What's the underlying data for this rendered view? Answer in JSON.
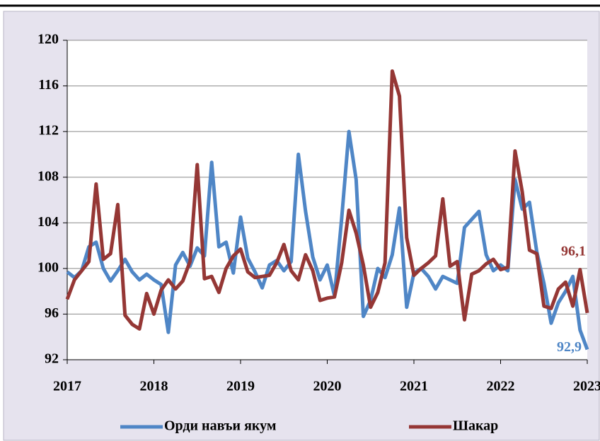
{
  "chart_data": {
    "type": "line",
    "categories": [
      "2017",
      null,
      null,
      null,
      null,
      null,
      null,
      null,
      null,
      null,
      null,
      null,
      "2018",
      null,
      null,
      null,
      null,
      null,
      null,
      null,
      null,
      null,
      null,
      null,
      "2019",
      null,
      null,
      null,
      null,
      null,
      null,
      null,
      null,
      null,
      null,
      null,
      "2020",
      null,
      null,
      null,
      null,
      null,
      null,
      null,
      null,
      null,
      null,
      null,
      "2021",
      null,
      null,
      null,
      null,
      null,
      null,
      null,
      null,
      null,
      null,
      null,
      "2022",
      null,
      null,
      null,
      null,
      null,
      null,
      null,
      null,
      null,
      null,
      null,
      "2023"
    ],
    "series": [
      {
        "name": "Орди навъи якум",
        "color": "#4f86c6",
        "values": [
          99.7,
          99.2,
          99.8,
          101.9,
          102.3,
          100.0,
          98.9,
          99.8,
          100.8,
          99.7,
          99.0,
          99.5,
          99.0,
          98.6,
          94.4,
          100.3,
          101.4,
          100.2,
          101.8,
          101.1,
          109.3,
          101.9,
          102.3,
          99.6,
          104.5,
          100.9,
          99.7,
          98.3,
          100.3,
          100.7,
          99.8,
          100.6,
          110.0,
          105.0,
          101.0,
          99.0,
          100.3,
          97.6,
          104.4,
          112.0,
          107.8,
          95.8,
          97.2,
          100.0,
          99.2,
          101.2,
          105.3,
          96.6,
          99.6,
          100.0,
          99.3,
          98.2,
          99.3,
          99.0,
          98.7,
          103.6,
          104.3,
          105.0,
          101.2,
          99.8,
          100.3,
          99.8,
          107.8,
          105.2,
          105.8,
          101.5,
          98.7,
          95.2,
          97.0,
          98.0,
          99.3,
          94.6,
          92.9
        ],
        "value_labels": [
          null,
          null,
          null,
          null,
          null,
          null,
          null,
          null,
          null,
          null,
          null,
          null,
          null,
          null,
          null,
          null,
          null,
          null,
          null,
          null,
          null,
          null,
          null,
          null,
          null,
          null,
          null,
          null,
          null,
          null,
          null,
          null,
          null,
          null,
          null,
          null,
          null,
          null,
          null,
          null,
          null,
          null,
          null,
          null,
          null,
          null,
          null,
          null,
          null,
          null,
          null,
          null,
          null,
          null,
          null,
          null,
          null,
          null,
          null,
          null,
          null,
          null,
          null,
          null,
          null,
          null,
          null,
          null,
          null,
          null,
          null,
          null,
          "92,9"
        ]
      },
      {
        "name": "Шакар",
        "color": "#953735",
        "values": [
          97.3,
          99.0,
          99.8,
          100.6,
          107.4,
          100.8,
          101.3,
          105.6,
          95.9,
          95.1,
          94.7,
          97.8,
          96.0,
          98.1,
          99.0,
          98.2,
          98.9,
          100.6,
          109.1,
          99.1,
          99.3,
          97.9,
          100.0,
          101.1,
          101.7,
          99.7,
          99.2,
          99.3,
          99.4,
          100.5,
          102.1,
          99.8,
          99.0,
          101.2,
          99.8,
          97.2,
          97.4,
          97.5,
          100.5,
          105.1,
          103.1,
          100.3,
          96.6,
          97.9,
          100.5,
          117.3,
          115.1,
          102.7,
          99.4,
          100.0,
          100.5,
          101.1,
          106.1,
          100.2,
          100.6,
          95.5,
          99.5,
          99.8,
          100.4,
          100.8,
          99.9,
          100.1,
          110.3,
          106.7,
          101.6,
          101.3,
          96.7,
          96.5,
          98.2,
          98.8,
          96.7,
          99.9,
          96.1
        ],
        "value_labels": [
          null,
          null,
          null,
          null,
          null,
          null,
          null,
          null,
          null,
          null,
          null,
          null,
          null,
          null,
          null,
          null,
          null,
          null,
          null,
          null,
          null,
          null,
          null,
          null,
          null,
          null,
          null,
          null,
          null,
          null,
          null,
          null,
          null,
          null,
          null,
          null,
          null,
          null,
          null,
          null,
          null,
          null,
          null,
          null,
          null,
          null,
          null,
          null,
          null,
          null,
          null,
          null,
          null,
          null,
          null,
          null,
          null,
          null,
          null,
          null,
          null,
          null,
          null,
          null,
          null,
          null,
          null,
          null,
          null,
          null,
          null,
          null,
          "96,1"
        ]
      }
    ],
    "ylim": [
      92,
      120
    ],
    "yticks": [
      92,
      96,
      100,
      104,
      108,
      112,
      116,
      120
    ],
    "grid": true,
    "legend": "bottom"
  }
}
